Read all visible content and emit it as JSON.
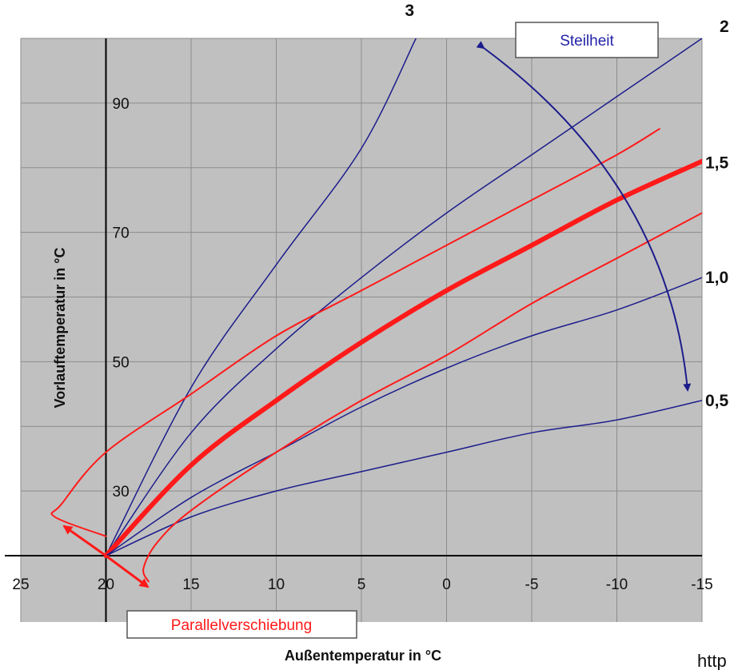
{
  "chart_data": {
    "type": "line",
    "xlabel": "Außentemperatur in °C",
    "ylabel": "Vorlauftemperatur in °C",
    "xlim": [
      25,
      -15
    ],
    "ylim": [
      20,
      100
    ],
    "x_ticks": [
      "25",
      "20",
      "15",
      "10",
      "5",
      "0",
      "-5",
      "-10",
      "-15"
    ],
    "y_ticks": [
      "30",
      "50",
      "70",
      "90"
    ],
    "grid": true,
    "series": [
      {
        "name": "3",
        "style": "blue-thin",
        "x": [
          20,
          15,
          10,
          5,
          1.8
        ],
        "y": [
          20,
          46,
          65,
          83,
          100
        ]
      },
      {
        "name": "2",
        "style": "blue-thin",
        "x": [
          20,
          15,
          10,
          5,
          0,
          -5,
          -10,
          -15
        ],
        "y": [
          20,
          39,
          52,
          63,
          73,
          82,
          91,
          100
        ]
      },
      {
        "name": "1,5",
        "style": "red-thick",
        "x": [
          20,
          15,
          10,
          5,
          0,
          -5,
          -10,
          -15
        ],
        "y": [
          20,
          34,
          44,
          53,
          61,
          68,
          75,
          81
        ]
      },
      {
        "name": "1,0",
        "style": "blue-thin",
        "x": [
          20,
          15,
          10,
          5,
          0,
          -5,
          -10,
          -15
        ],
        "y": [
          20,
          29,
          36,
          43,
          49,
          54,
          58,
          63
        ]
      },
      {
        "name": "0,5",
        "style": "blue-thin",
        "x": [
          20,
          15,
          10,
          5,
          0,
          -5,
          -10,
          -15
        ],
        "y": [
          20,
          26,
          30,
          33,
          36,
          39,
          41,
          44
        ]
      },
      {
        "name": "",
        "style": "red-thin",
        "x": [
          20,
          23,
          22.6,
          20,
          15,
          10,
          5,
          0,
          -5,
          -10,
          -12.5
        ],
        "y": [
          23,
          26,
          28,
          36,
          45,
          54,
          61,
          68,
          75,
          82,
          86
        ]
      },
      {
        "name": "",
        "style": "red-thin",
        "x": [
          17.5,
          17.8,
          17,
          15,
          10,
          5,
          0,
          -5,
          -10,
          -15
        ],
        "y": [
          16,
          18,
          22,
          27,
          36,
          44,
          51,
          59,
          66,
          73
        ]
      }
    ],
    "annotations": {
      "steepness_box": "Steilheit",
      "shift_box": "Parallelverschiebung",
      "cut_text": "http"
    }
  },
  "colors": {
    "plot_bg": "#c0c0c0",
    "grid": "#8c8c8c",
    "blue": "#1c1c8c",
    "red": "#ff1a1a",
    "box_text_blue": "#2323a8",
    "box_text_red": "#ff1a1a"
  }
}
